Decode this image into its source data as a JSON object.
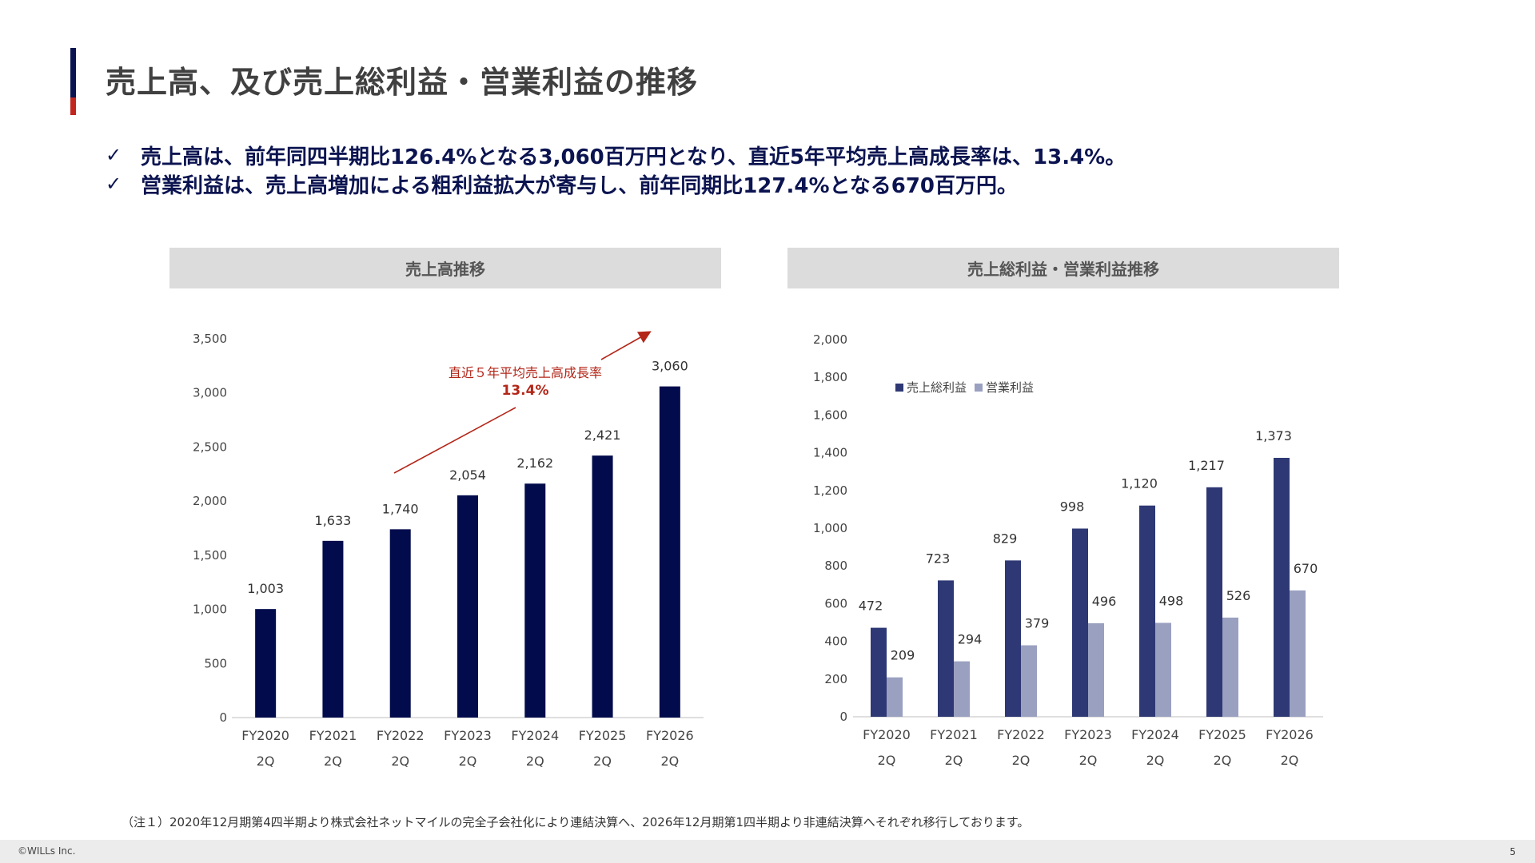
{
  "title": "売上高、及び売上総利益・営業利益の推移",
  "bullets": [
    "売上高は、前年同四半期比126.4%となる3,060百万円となり、直近5年平均売上高成長率は、13.4%。",
    "営業利益は、売上高増加による粗利益拡大が寄与し、前年同期比127.4%となる670百万円。"
  ],
  "check_mark": "✓",
  "colors": {
    "dark_navy": "#020c4c",
    "navy": "#2e3874",
    "lavender": "#9aa0c0",
    "accent_red": "#b32618"
  },
  "chart_data": [
    {
      "type": "bar",
      "title": "売上高推移",
      "categories": [
        "FY2020\n2Q",
        "FY2021\n2Q",
        "FY2022\n2Q",
        "FY2023\n2Q",
        "FY2024\n2Q",
        "FY2025\n2Q",
        "FY2026\n2Q"
      ],
      "values": [
        1003,
        1633,
        1740,
        2054,
        2162,
        2421,
        3060
      ],
      "ylim": [
        0,
        3500
      ],
      "yticks": [
        0,
        500,
        1000,
        1500,
        2000,
        2500,
        3000,
        3500
      ],
      "annotation": {
        "label": "直近５年平均売上高成長率",
        "value": "13.4%"
      },
      "grid": false
    },
    {
      "type": "bar",
      "title": "売上総利益・営業利益推移",
      "categories": [
        "FY2020\n2Q",
        "FY2021\n2Q",
        "FY2022\n2Q",
        "FY2023\n2Q",
        "FY2024\n2Q",
        "FY2025\n2Q",
        "FY2026\n2Q"
      ],
      "series": [
        {
          "name": "売上総利益",
          "values": [
            472,
            723,
            829,
            998,
            1120,
            1217,
            1373
          ]
        },
        {
          "name": "営業利益",
          "values": [
            209,
            294,
            379,
            496,
            498,
            526,
            670
          ]
        }
      ],
      "ylim": [
        0,
        2000
      ],
      "yticks": [
        0,
        200,
        400,
        600,
        800,
        1000,
        1200,
        1400,
        1600,
        1800,
        2000
      ],
      "legend": "top-left",
      "grid": false
    }
  ],
  "note": "（注１）2020年12月期第4四半期より株式会社ネットマイルの完全子会社化により連結決算へ、2026年12月期第1四半期より非連結決算へそれぞれ移行しております。",
  "footer": {
    "copyright": "©WILLs Inc.",
    "page": "5"
  }
}
